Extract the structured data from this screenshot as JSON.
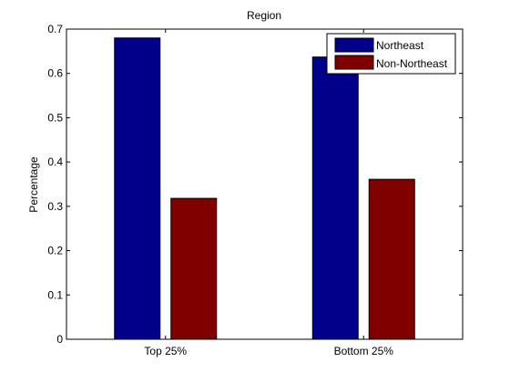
{
  "chart_data": {
    "type": "bar",
    "title": "Region",
    "xlabel": "",
    "ylabel": "Percentage",
    "categories": [
      "Top 25%",
      "Bottom 25%"
    ],
    "series": [
      {
        "name": "Northeast",
        "values": [
          0.68,
          0.637
        ],
        "color": "#00008b"
      },
      {
        "name": "Non-Northeast",
        "values": [
          0.318,
          0.361
        ],
        "color": "#800000"
      }
    ],
    "ylim": [
      0,
      0.7
    ],
    "yticks": [
      0,
      0.1,
      0.2,
      0.3,
      0.4,
      0.5,
      0.6,
      0.7
    ],
    "ytick_labels": [
      "0",
      "0.1",
      "0.2",
      "0.3",
      "0.4",
      "0.5",
      "0.6",
      "0.7"
    ],
    "grid": false,
    "legend_position": "top-right"
  }
}
